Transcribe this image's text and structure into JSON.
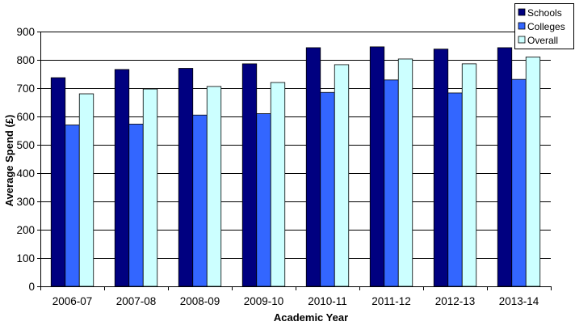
{
  "chart_data": {
    "type": "bar",
    "title": "",
    "xlabel": "Academic Year",
    "ylabel": "Average Spend (£)",
    "ylim": [
      0,
      900
    ],
    "yticks": [
      0,
      100,
      200,
      300,
      400,
      500,
      600,
      700,
      800,
      900
    ],
    "grid": true,
    "legend_position": "top-right",
    "categories": [
      "2006-07",
      "2007-08",
      "2008-09",
      "2009-10",
      "2010-11",
      "2011-12",
      "2012-13",
      "2013-14"
    ],
    "series": [
      {
        "name": "Schools",
        "color": "#000080",
        "values": [
          737,
          766,
          770,
          786,
          843,
          846,
          838,
          843
        ]
      },
      {
        "name": "Colleges",
        "color": "#3366FF",
        "values": [
          570,
          573,
          605,
          610,
          685,
          729,
          683,
          731
        ]
      },
      {
        "name": "Overall",
        "color": "#CCFFFF",
        "values": [
          680,
          697,
          706,
          720,
          783,
          803,
          786,
          810
        ]
      }
    ]
  }
}
